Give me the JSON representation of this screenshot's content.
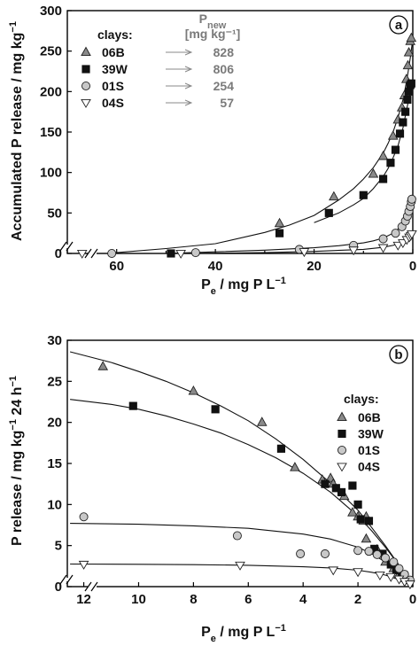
{
  "chart_data": [
    {
      "type": "scatter",
      "panel_label": "a",
      "xlabel": "P_e / mg P L^-1",
      "ylabel": "Accumulated P release / mg kg^-1",
      "x_reversed": true,
      "xlim": [
        0,
        70
      ],
      "ylim": [
        0,
        300
      ],
      "x_ticks": [
        60,
        40,
        20,
        0
      ],
      "y_ticks": [
        0,
        50,
        100,
        150,
        200,
        250,
        300
      ],
      "legend_title": "clays:",
      "legend_placement": "top-left",
      "pnew_header": "P",
      "pnew_sub": "new",
      "pnew_unit": "[mg kg⁻¹]",
      "series": [
        {
          "name": "06B",
          "marker": "triangle-up",
          "pnew": "828",
          "points": [
            [
              27,
              37
            ],
            [
              16,
              70
            ],
            [
              8,
              98
            ],
            [
              6,
              120
            ],
            [
              4,
              145
            ],
            [
              3,
              165
            ],
            [
              2.2,
              180
            ],
            [
              1.7,
              195
            ],
            [
              1.3,
              215
            ],
            [
              1,
              232
            ],
            [
              0.8,
              248
            ],
            [
              0.5,
              262
            ],
            [
              0.3,
              266
            ]
          ]
        },
        {
          "name": "39W",
          "marker": "square",
          "pnew": "806",
          "points": [
            [
              49,
              0
            ],
            [
              27,
              25
            ],
            [
              17,
              50
            ],
            [
              10,
              72
            ],
            [
              6,
              92
            ],
            [
              4.5,
              112
            ],
            [
              3.5,
              128
            ],
            [
              2.6,
              148
            ],
            [
              2,
              162
            ],
            [
              1.5,
              175
            ],
            [
              1.1,
              190
            ],
            [
              0.8,
              200
            ],
            [
              0.5,
              208
            ],
            [
              0.3,
              210
            ]
          ]
        },
        {
          "name": "01S",
          "marker": "circle",
          "pnew": "254",
          "points": [
            [
              61,
              0
            ],
            [
              44,
              1
            ],
            [
              23,
              5
            ],
            [
              12,
              10
            ],
            [
              6,
              18
            ],
            [
              3.5,
              25
            ],
            [
              2.2,
              33
            ],
            [
              1.5,
              40
            ],
            [
              1.1,
              46
            ],
            [
              0.8,
              52
            ],
            [
              0.5,
              58
            ],
            [
              0.3,
              64
            ],
            [
              0.2,
              67
            ]
          ]
        },
        {
          "name": "04S",
          "marker": "triangle-down",
          "pnew": "57",
          "points": [
            [
              67,
              0
            ],
            [
              47,
              0
            ],
            [
              22,
              2
            ],
            [
              12,
              4
            ],
            [
              6,
              7
            ],
            [
              3,
              10
            ],
            [
              2,
              13
            ],
            [
              1.2,
              17
            ],
            [
              0.7,
              20
            ],
            [
              0.4,
              22
            ],
            [
              0.2,
              24
            ]
          ]
        }
      ],
      "fit_curves": [
        {
          "series": "06B",
          "points": [
            [
              62,
              0
            ],
            [
              50,
              6
            ],
            [
              40,
              12
            ],
            [
              30,
              26
            ],
            [
              25,
              35
            ],
            [
              20,
              47
            ],
            [
              15,
              66
            ],
            [
              12,
              80
            ],
            [
              10,
              92
            ],
            [
              8,
              106
            ],
            [
              6,
              124
            ],
            [
              5,
              136
            ],
            [
              4,
              150
            ],
            [
              3,
              168
            ],
            [
              2,
              190
            ],
            [
              1.5,
              205
            ],
            [
              1,
              222
            ],
            [
              0.5,
              242
            ],
            [
              0.2,
              256
            ],
            [
              0,
              268
            ]
          ]
        },
        {
          "series": "39W",
          "points": [
            [
              20,
              38
            ],
            [
              15,
              50
            ],
            [
              12,
              60
            ],
            [
              10,
              68
            ],
            [
              8,
              80
            ],
            [
              6,
              95
            ],
            [
              5,
              105
            ],
            [
              4,
              118
            ],
            [
              3,
              133
            ],
            [
              2,
              155
            ],
            [
              1.5,
              170
            ],
            [
              1,
              185
            ],
            [
              0.5,
              200
            ],
            [
              0.2,
              210
            ],
            [
              0,
              215
            ]
          ]
        },
        {
          "series": "01S",
          "points": [
            [
              68,
              -3
            ],
            [
              60,
              -1.5
            ],
            [
              50,
              0
            ],
            [
              40,
              2
            ],
            [
              30,
              4
            ],
            [
              20,
              7
            ],
            [
              15,
              9.5
            ],
            [
              10,
              13
            ],
            [
              8,
              15.5
            ],
            [
              6,
              19
            ],
            [
              4,
              25
            ],
            [
              3,
              30
            ],
            [
              2,
              38
            ],
            [
              1.5,
              44
            ],
            [
              1,
              51
            ],
            [
              0.5,
              60
            ],
            [
              0.2,
              66
            ],
            [
              0,
              70
            ]
          ]
        },
        {
          "series": "04S",
          "points": [
            [
              68,
              -1.5
            ],
            [
              60,
              -0.8
            ],
            [
              45,
              0
            ],
            [
              30,
              1
            ],
            [
              20,
              2.5
            ],
            [
              10,
              5
            ],
            [
              6,
              7.5
            ],
            [
              4,
              10
            ],
            [
              2,
              14
            ],
            [
              1,
              18
            ],
            [
              0.5,
              21
            ],
            [
              0,
              26
            ]
          ]
        }
      ]
    },
    {
      "type": "scatter",
      "panel_label": "b",
      "xlabel": "P_e / mg P L^-1",
      "ylabel": "P release / mg kg^-1 24 h^-1",
      "x_reversed": true,
      "xlim": [
        0,
        12.6
      ],
      "ylim": [
        0,
        30
      ],
      "x_ticks": [
        12,
        10,
        8,
        6,
        4,
        2,
        0
      ],
      "y_ticks": [
        0,
        5,
        10,
        15,
        20,
        25,
        30
      ],
      "legend_title": "clays:",
      "legend_placement": "top-right",
      "series": [
        {
          "name": "06B",
          "marker": "triangle-up",
          "points": [
            [
              11.3,
              26.8
            ],
            [
              8,
              23.8
            ],
            [
              5.5,
              20
            ],
            [
              4.3,
              14.5
            ],
            [
              3.3,
              13
            ],
            [
              3,
              13.2
            ],
            [
              2.9,
              12.5
            ],
            [
              2.5,
              11
            ],
            [
              2.2,
              9
            ],
            [
              2,
              8.5
            ],
            [
              1.8,
              8
            ],
            [
              1.7,
              8.5
            ],
            [
              1.7,
              5.8
            ],
            [
              1.3,
              4.5
            ],
            [
              1,
              3
            ],
            [
              0.7,
              2.2
            ],
            [
              0.5,
              1.5
            ],
            [
              0.3,
              1
            ]
          ]
        },
        {
          "name": "39W",
          "marker": "square",
          "points": [
            [
              10.2,
              22
            ],
            [
              7.2,
              21.6
            ],
            [
              4.8,
              16.8
            ],
            [
              3.2,
              12.5
            ],
            [
              2.8,
              12
            ],
            [
              2.6,
              11.5
            ],
            [
              2.2,
              12.3
            ],
            [
              2,
              10
            ],
            [
              1.9,
              8.2
            ],
            [
              1.6,
              8
            ],
            [
              1.4,
              4.6
            ],
            [
              1.1,
              4
            ],
            [
              0.8,
              2.7
            ],
            [
              0.6,
              2
            ],
            [
              0.4,
              1.5
            ],
            [
              0.2,
              0.8
            ]
          ]
        },
        {
          "name": "01S",
          "marker": "circle",
          "points": [
            [
              12,
              8.5
            ],
            [
              6.4,
              6.2
            ],
            [
              4.1,
              4
            ],
            [
              3.2,
              4
            ],
            [
              2,
              4.4
            ],
            [
              1.6,
              4.3
            ],
            [
              1.3,
              3.9
            ],
            [
              1,
              3.5
            ],
            [
              0.7,
              3
            ],
            [
              0.5,
              2.2
            ],
            [
              0.3,
              1.5
            ],
            [
              0.1,
              0.8
            ]
          ]
        },
        {
          "name": "04S",
          "marker": "triangle-down",
          "points": [
            [
              12,
              2.7
            ],
            [
              6.3,
              2.6
            ],
            [
              2.9,
              2
            ],
            [
              2,
              1.8
            ],
            [
              1.2,
              1.4
            ],
            [
              0.8,
              1.2
            ],
            [
              0.5,
              0.9
            ],
            [
              0.3,
              0.6
            ],
            [
              0.1,
              0.3
            ]
          ]
        }
      ],
      "fit_curves": [
        {
          "series": "06B",
          "points": [
            [
              12.5,
              28.6
            ],
            [
              11,
              27.3
            ],
            [
              10,
              26.2
            ],
            [
              9,
              25
            ],
            [
              8,
              23.6
            ],
            [
              7,
              22
            ],
            [
              6,
              20.2
            ],
            [
              5,
              18
            ],
            [
              4,
              15.5
            ],
            [
              3,
              12.6
            ],
            [
              2,
              9.3
            ],
            [
              1.5,
              7.2
            ],
            [
              1,
              5
            ],
            [
              0.5,
              2.6
            ],
            [
              0.1,
              0.5
            ]
          ]
        },
        {
          "series": "39W",
          "points": [
            [
              12.5,
              22.8
            ],
            [
              11,
              22.2
            ],
            [
              10,
              21.6
            ],
            [
              9,
              20.8
            ],
            [
              8,
              19.8
            ],
            [
              7,
              18.7
            ],
            [
              6,
              17.3
            ],
            [
              5,
              15.7
            ],
            [
              4,
              13.8
            ],
            [
              3,
              11.5
            ],
            [
              2,
              8.6
            ],
            [
              1.5,
              6.8
            ],
            [
              1,
              4.8
            ],
            [
              0.5,
              2.6
            ],
            [
              0.1,
              0.5
            ]
          ]
        },
        {
          "series": "01S",
          "points": [
            [
              12.5,
              7.7
            ],
            [
              10,
              7.6
            ],
            [
              8,
              7.4
            ],
            [
              6,
              7.1
            ],
            [
              4,
              6.4
            ],
            [
              3,
              5.8
            ],
            [
              2,
              4.8
            ],
            [
              1.5,
              4
            ],
            [
              1,
              3
            ],
            [
              0.5,
              1.7
            ],
            [
              0.1,
              0.4
            ]
          ]
        },
        {
          "series": "04S",
          "points": [
            [
              12.5,
              2.75
            ],
            [
              10,
              2.72
            ],
            [
              8,
              2.68
            ],
            [
              6,
              2.6
            ],
            [
              4,
              2.42
            ],
            [
              3,
              2.28
            ],
            [
              2,
              2
            ],
            [
              1.5,
              1.75
            ],
            [
              1,
              1.4
            ],
            [
              0.5,
              0.85
            ],
            [
              0.1,
              0.2
            ]
          ]
        }
      ]
    }
  ],
  "colors": {
    "06B": "#8a8a8a",
    "39W": "#111111",
    "01S": "#c8c8c8",
    "04S": "#ffffff",
    "pnew_text": "#7a7a7a"
  }
}
